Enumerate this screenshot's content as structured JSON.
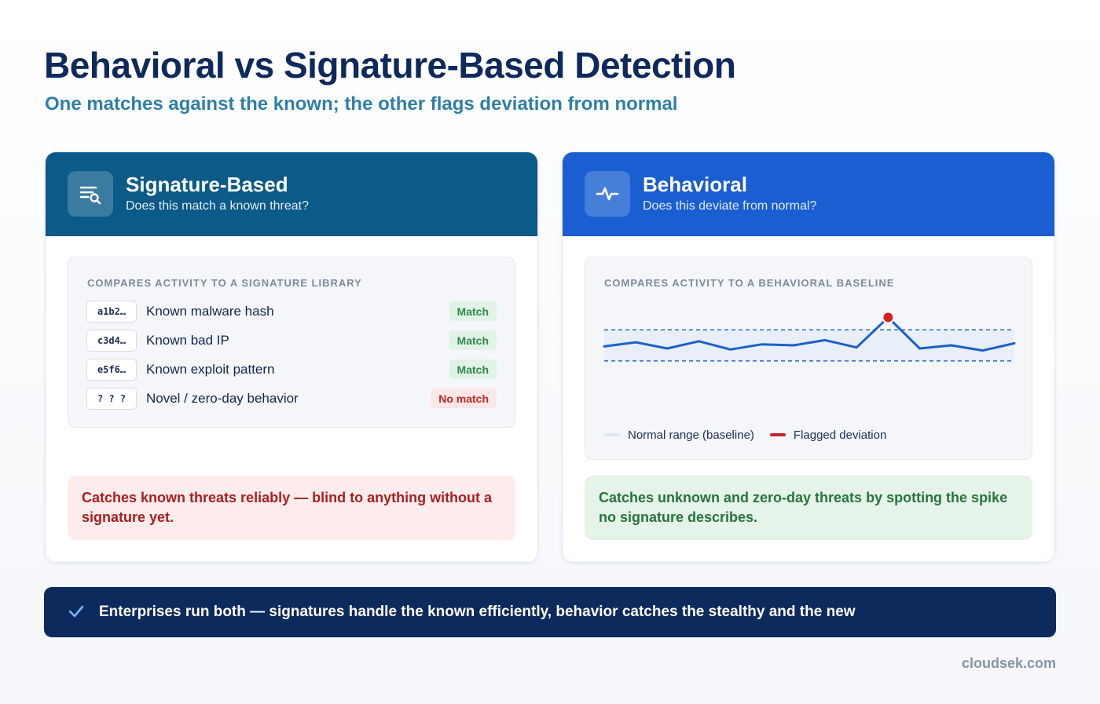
{
  "title": "Behavioral vs Signature-Based Detection",
  "subtitle": "One matches against the known; the other flags deviation from normal",
  "signature": {
    "title": "Signature-Based",
    "question": "Does this match a known threat?",
    "icon": "search-list-icon",
    "panel_label": "COMPARES ACTIVITY TO A SIGNATURE LIBRARY",
    "rows": [
      {
        "hash": "a1b2…",
        "label": "Known malware hash",
        "status": "Match"
      },
      {
        "hash": "c3d4…",
        "label": "Known bad IP",
        "status": "Match"
      },
      {
        "hash": "e5f6…",
        "label": "Known exploit pattern",
        "status": "Match"
      },
      {
        "hash": "? ? ?",
        "label": "Novel / zero-day behavior",
        "status": "No match"
      }
    ],
    "note": "Catches known threats reliably — blind to anything without a signature yet."
  },
  "behavioral": {
    "title": "Behavioral",
    "question": "Does this deviate from normal?",
    "icon": "pulse-icon",
    "panel_label": "COMPARES ACTIVITY TO A BEHAVIORAL BASELINE",
    "legend": {
      "baseline": "Normal range (baseline)",
      "deviation": "Flagged deviation"
    },
    "note": "Catches unknown and zero-day threats by spotting the spike no signature describes."
  },
  "chart_data": {
    "type": "line",
    "x": [
      0,
      1,
      2,
      3,
      4,
      5,
      6,
      7,
      8,
      9,
      10,
      11,
      12,
      13
    ],
    "values": [
      52,
      56,
      50,
      57,
      49,
      54,
      53,
      58,
      51,
      80,
      50,
      53,
      48,
      55
    ],
    "band": [
      38,
      68
    ],
    "flagged_index": 9,
    "ylim": [
      0,
      100
    ],
    "grid": false,
    "legend_placement": "bottom-left",
    "colors": {
      "line": "#1f5fc8",
      "band": "#e3ecfa",
      "band_border": "#2f67c9",
      "flag": "#d42020"
    }
  },
  "banner": {
    "text": "Enterprises run both — signatures handle the known efficiently, behavior catches the stealthy and the new",
    "icon": "check-icon"
  },
  "footer": "cloudsek.com"
}
